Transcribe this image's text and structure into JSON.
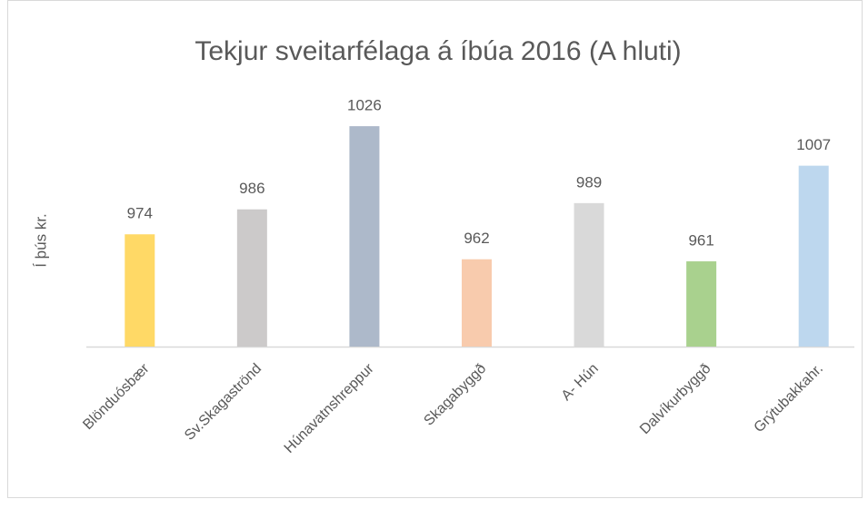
{
  "chart_data": {
    "type": "bar",
    "title": "Tekjur sveitarfélaga á íbúa 2016 (A hluti)",
    "y_label": "Í þús kr.",
    "categories": [
      "Blönduósbær",
      "Sv.Skagaströnd",
      "Húnavatnshreppur",
      "Skagabyggð",
      "A- Hún",
      "Dalvíkurbyggð",
      "Grýtubakkahr."
    ],
    "values": [
      974,
      986,
      1026,
      962,
      989,
      961,
      1007
    ],
    "colors": [
      "#ffd966",
      "#cccaca",
      "#adb9ca",
      "#f8cbad",
      "#d9d9d9",
      "#a9d18e",
      "#bdd7ee"
    ],
    "ylim": [
      920,
      1040
    ]
  }
}
